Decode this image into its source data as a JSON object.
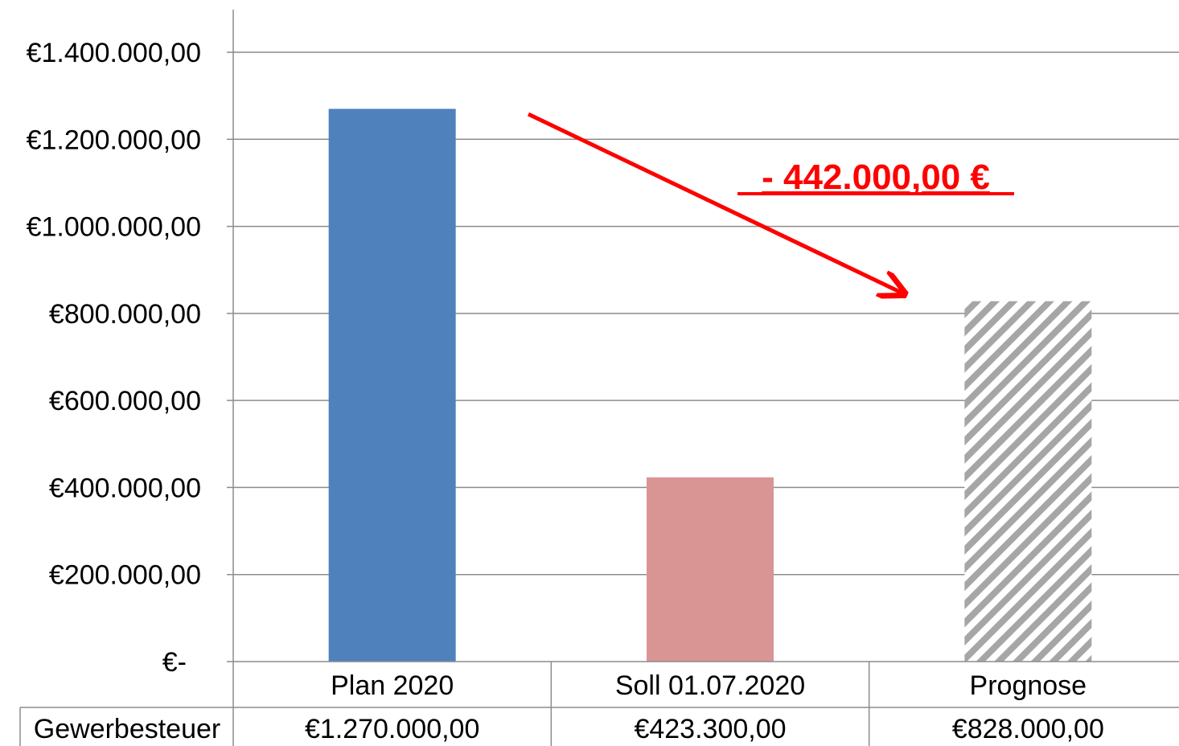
{
  "chart_data": {
    "type": "bar",
    "categories": [
      "Plan 2020",
      "Soll 01.07.2020",
      "Prognose"
    ],
    "series": [
      {
        "name": "Gewerbesteuer",
        "values": [
          1270000,
          423300,
          828000
        ],
        "value_labels": [
          "€1.270.000,00",
          "€423.300,00",
          "€828.000,00"
        ]
      }
    ],
    "bar_colors": [
      "#4f81bd",
      "#d99594",
      "hatched-gray"
    ],
    "y_ticks": [
      0,
      200000,
      400000,
      600000,
      800000,
      1000000,
      1200000,
      1400000
    ],
    "y_tick_labels": [
      "€-",
      "€200.000,00",
      "€400.000,00",
      "€600.000,00",
      "€800.000,00",
      "€1.000.000,00",
      "€1.200.000,00",
      "€1.400.000,00"
    ],
    "ylim": [
      0,
      1400000
    ],
    "grid": true,
    "data_table": true,
    "annotation": {
      "text": "- 442.000,00 €",
      "color": "#ff0000",
      "arrow": "from Plan 2020 down to Prognose"
    }
  }
}
